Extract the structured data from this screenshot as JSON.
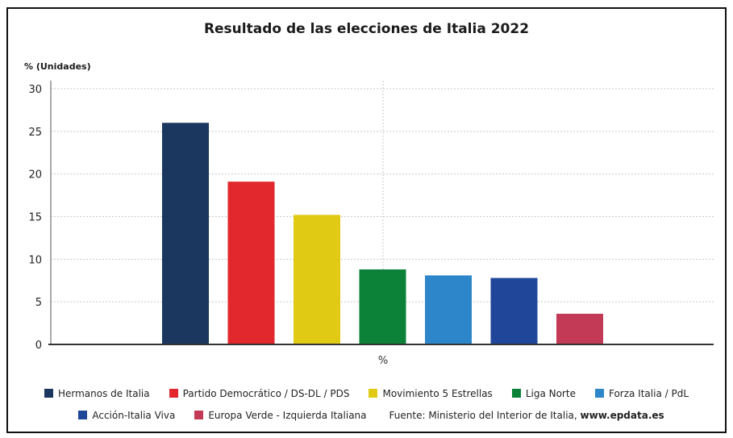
{
  "chart_data": {
    "type": "bar",
    "title": "Resultado de las elecciones de Italia 2022",
    "ylabel": "% (Unidades)",
    "xlabel": "%",
    "ylim": [
      0,
      30
    ],
    "yticks": [
      "0",
      "5",
      "10",
      "15",
      "20",
      "25",
      "30"
    ],
    "grid": true,
    "legend_position": "bottom",
    "series": [
      {
        "name": "Hermanos de Italia",
        "value": 26.0,
        "color": "#1b365f"
      },
      {
        "name": "Partido Democrático / DS-DL / PDS",
        "value": 19.1,
        "color": "#e2282d"
      },
      {
        "name": "Movimiento 5 Estrellas",
        "value": 15.2,
        "color": "#e1ca14"
      },
      {
        "name": "Liga Norte",
        "value": 8.8,
        "color": "#0c8138"
      },
      {
        "name": "Forza Italia / PdL",
        "value": 8.1,
        "color": "#2d86c9"
      },
      {
        "name": "Acción-Italia Viva",
        "value": 7.8,
        "color": "#20469a"
      },
      {
        "name": "Europa Verde - Izquierda Italiana",
        "value": 3.6,
        "color": "#c23a55"
      }
    ]
  },
  "source": {
    "prefix": "Fuente: Ministerio del Interior de Italia, ",
    "site": "www.epdata.es"
  }
}
